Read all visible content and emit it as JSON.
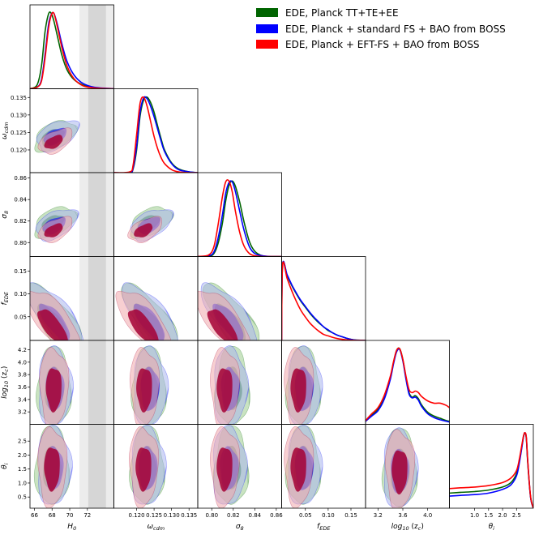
{
  "chart_data": {
    "type": "corner",
    "title": "",
    "legend": {
      "placement": "top-right",
      "entries": [
        {
          "label": "EDE, Planck TT+TE+EE",
          "color": "#006400"
        },
        {
          "label": "EDE, Planck + standard FS + BAO from BOSS",
          "color": "#0000ff"
        },
        {
          "label": "EDE, Planck + EFT-FS + BAO from BOSS",
          "color": "#ff0000"
        }
      ]
    },
    "colors": {
      "green": "#006400",
      "blue": "#0000ff",
      "red": "#ff0000",
      "green_fill": "#9ccc8e",
      "blue_fill": "#a9b6ec",
      "red_fill": "#f0a7ac",
      "red_dark": "#a50034",
      "shade_light": "#ececec",
      "shade_dark": "#d6d6d6"
    },
    "h0_band": {
      "sigma1": [
        72.1,
        74.1
      ],
      "sigma2": [
        71.1,
        75.1
      ]
    },
    "parameters": [
      {
        "key": "H0",
        "label": "H",
        "sub": "0",
        "range": [
          65.5,
          75.0
        ],
        "ticks": [
          66,
          68,
          70,
          72
        ],
        "tick_labels": [
          "66",
          "68",
          "70",
          "72"
        ]
      },
      {
        "key": "omega_cdm",
        "label": "ω",
        "sub": "cdm",
        "range": [
          0.1135,
          0.1375
        ],
        "ticks": [
          0.12,
          0.125,
          0.13,
          0.135
        ],
        "tick_labels": [
          "0.120",
          "0.125",
          "0.130",
          "0.135"
        ]
      },
      {
        "key": "sigma8",
        "label": "σ",
        "sub": "8",
        "range": [
          0.787,
          0.865
        ],
        "ticks": [
          0.8,
          0.82,
          0.84,
          0.86
        ],
        "tick_labels": [
          "0.80",
          "0.82",
          "0.84",
          "0.86"
        ]
      },
      {
        "key": "fEDE",
        "label": "f",
        "sub": "EDE",
        "range": [
          -0.002,
          0.182
        ],
        "ticks": [
          0.05,
          0.1,
          0.15
        ],
        "tick_labels": [
          "0.05",
          "0.10",
          "0.15"
        ]
      },
      {
        "key": "log10zc",
        "label": "log",
        "sub": "10",
        "suffix": " (z",
        "sub2": "c",
        "suffix2": ")",
        "range": [
          3.0,
          4.35
        ],
        "ticks": [
          3.2,
          3.4,
          3.6,
          3.8,
          4.0,
          4.2
        ],
        "tick_labels": [
          "3.2",
          "3.4",
          "3.6",
          "3.8",
          "4.0",
          "4.2"
        ]
      },
      {
        "key": "theta_i",
        "label": "θ",
        "sub": "i",
        "range": [
          0.1,
          3.1
        ],
        "ticks": [
          0.5,
          1.0,
          1.5,
          2.0,
          2.5
        ],
        "tick_labels": [
          "0.5",
          "1.0",
          "1.5",
          "2.0",
          "2.5"
        ]
      }
    ],
    "x_tick_subsets": [
      {
        "ticks": [
          66,
          68,
          70,
          72
        ],
        "tick_labels": [
          "66",
          "68",
          "70",
          "72"
        ]
      },
      {
        "ticks": [
          0.12,
          0.125,
          0.13,
          0.135
        ],
        "tick_labels": [
          "0.120",
          "0.125",
          "0.130",
          "0.135"
        ]
      },
      {
        "ticks": [
          0.8,
          0.82,
          0.84,
          0.86
        ],
        "tick_labels": [
          "0.80",
          "0.82",
          "0.84",
          "0.86"
        ]
      },
      {
        "ticks": [
          0.05,
          0.1,
          0.15
        ],
        "tick_labels": [
          "0.05",
          "0.10",
          "0.15"
        ]
      },
      {
        "ticks": [
          3.2,
          3.6,
          4.0
        ],
        "tick_labels": [
          "3.2",
          "3.6",
          "4.0"
        ]
      },
      {
        "ticks": [
          1.0,
          1.5,
          2.0,
          2.5
        ],
        "tick_labels": [
          "1.0",
          "1.5",
          "2.0",
          "2.5"
        ]
      }
    ],
    "y_tick_subsets": [
      null,
      {
        "ticks": [
          0.12,
          0.125,
          0.13,
          0.135
        ],
        "tick_labels": [
          "0.120",
          "0.125",
          "0.130",
          "0.135"
        ]
      },
      {
        "ticks": [
          0.8,
          0.82,
          0.84,
          0.86
        ],
        "tick_labels": [
          "0.80",
          "0.82",
          "0.84",
          "0.86"
        ]
      },
      {
        "ticks": [
          0.05,
          0.1,
          0.15
        ],
        "tick_labels": [
          "0.05",
          "0.10",
          "0.15"
        ]
      },
      {
        "ticks": [
          3.2,
          3.4,
          3.6,
          3.8,
          4.0,
          4.2
        ],
        "tick_labels": [
          "3.2",
          "3.4",
          "3.6",
          "3.8",
          "4.0",
          "4.2"
        ]
      },
      {
        "ticks": [
          0.5,
          1.0,
          1.5,
          2.0,
          2.5
        ],
        "tick_labels": [
          "0.5",
          "1.0",
          "1.5",
          "2.0",
          "2.5"
        ]
      }
    ],
    "posteriors_1d": {
      "H0": {
        "x": [
          65.5,
          66.3,
          66.8,
          67.2,
          67.6,
          67.9,
          68.2,
          68.6,
          69.1,
          69.7,
          70.5,
          71.5,
          72.8,
          75.0
        ],
        "series": [
          {
            "name": "green",
            "y": [
              0.0,
              0.05,
              0.3,
              0.75,
              0.99,
              1.0,
              0.9,
              0.7,
              0.45,
              0.25,
              0.12,
              0.05,
              0.01,
              0.0
            ]
          },
          {
            "name": "blue",
            "y": [
              0.0,
              0.02,
              0.12,
              0.45,
              0.85,
              0.98,
              1.0,
              0.85,
              0.6,
              0.36,
              0.18,
              0.07,
              0.02,
              0.0
            ]
          },
          {
            "name": "red",
            "y": [
              0.0,
              0.02,
              0.1,
              0.4,
              0.8,
              0.97,
              1.0,
              0.82,
              0.55,
              0.3,
              0.13,
              0.04,
              0.01,
              0.0
            ]
          }
        ]
      },
      "omega_cdm": {
        "x": [
          0.1135,
          0.118,
          0.119,
          0.12,
          0.121,
          0.122,
          0.123,
          0.124,
          0.125,
          0.126,
          0.127,
          0.128,
          0.13,
          0.132,
          0.135,
          0.1375
        ],
        "series": [
          {
            "name": "green",
            "y": [
              0.0,
              0.0,
              0.05,
              0.3,
              0.75,
              0.96,
              1.0,
              0.93,
              0.8,
              0.62,
              0.45,
              0.3,
              0.13,
              0.05,
              0.01,
              0.0
            ]
          },
          {
            "name": "blue",
            "y": [
              0.0,
              0.0,
              0.06,
              0.35,
              0.8,
              0.99,
              0.98,
              0.88,
              0.74,
              0.58,
              0.42,
              0.28,
              0.12,
              0.04,
              0.01,
              0.0
            ]
          },
          {
            "name": "red",
            "y": [
              0.0,
              0.01,
              0.1,
              0.5,
              0.92,
              1.0,
              0.88,
              0.68,
              0.48,
              0.32,
              0.2,
              0.12,
              0.04,
              0.01,
              0.0,
              0.0
            ]
          }
        ]
      },
      "sigma8": {
        "x": [
          0.787,
          0.797,
          0.802,
          0.806,
          0.81,
          0.813,
          0.816,
          0.819,
          0.822,
          0.826,
          0.83,
          0.835,
          0.84,
          0.847,
          0.855,
          0.865
        ],
        "series": [
          {
            "name": "green",
            "y": [
              0.0,
              0.0,
              0.04,
              0.18,
              0.45,
              0.74,
              0.94,
              1.0,
              0.93,
              0.72,
              0.46,
              0.2,
              0.07,
              0.01,
              0.0,
              0.0
            ]
          },
          {
            "name": "blue",
            "y": [
              0.0,
              0.01,
              0.06,
              0.25,
              0.56,
              0.84,
              0.98,
              0.99,
              0.86,
              0.6,
              0.35,
              0.13,
              0.04,
              0.01,
              0.0,
              0.0
            ]
          },
          {
            "name": "red",
            "y": [
              0.0,
              0.02,
              0.13,
              0.43,
              0.8,
              0.99,
              1.0,
              0.86,
              0.6,
              0.32,
              0.14,
              0.04,
              0.01,
              0.0,
              0.0,
              0.0
            ]
          }
        ]
      },
      "fEDE": {
        "x": [
          -0.002,
          0.0,
          0.01,
          0.02,
          0.03,
          0.04,
          0.05,
          0.06,
          0.07,
          0.08,
          0.09,
          0.1,
          0.11,
          0.12,
          0.13,
          0.14,
          0.15,
          0.16,
          0.182
        ],
        "series": [
          {
            "name": "green",
            "y": [
              0.0,
              1.0,
              0.86,
              0.73,
              0.62,
              0.52,
              0.44,
              0.36,
              0.29,
              0.23,
              0.18,
              0.13,
              0.1,
              0.07,
              0.05,
              0.03,
              0.015,
              0.005,
              0.0
            ]
          },
          {
            "name": "blue",
            "y": [
              0.0,
              1.0,
              0.87,
              0.74,
              0.63,
              0.53,
              0.45,
              0.37,
              0.3,
              0.24,
              0.18,
              0.14,
              0.1,
              0.07,
              0.05,
              0.03,
              0.015,
              0.005,
              0.0
            ]
          },
          {
            "name": "red",
            "y": [
              0.0,
              1.0,
              0.82,
              0.66,
              0.52,
              0.4,
              0.31,
              0.23,
              0.17,
              0.12,
              0.08,
              0.06,
              0.04,
              0.025,
              0.015,
              0.008,
              0.004,
              0.001,
              0.0
            ]
          }
        ]
      },
      "log10zc": {
        "x": [
          3.0,
          3.1,
          3.2,
          3.3,
          3.4,
          3.45,
          3.5,
          3.55,
          3.6,
          3.65,
          3.7,
          3.75,
          3.8,
          3.85,
          3.9,
          4.0,
          4.1,
          4.2,
          4.3,
          4.35
        ],
        "series": [
          {
            "name": "green",
            "y": [
              0.04,
              0.12,
              0.2,
              0.35,
              0.62,
              0.82,
              0.98,
              1.0,
              0.86,
              0.62,
              0.42,
              0.36,
              0.38,
              0.34,
              0.26,
              0.16,
              0.11,
              0.08,
              0.05,
              0.04
            ]
          },
          {
            "name": "blue",
            "y": [
              0.04,
              0.11,
              0.18,
              0.33,
              0.6,
              0.8,
              0.96,
              0.99,
              0.84,
              0.6,
              0.4,
              0.35,
              0.36,
              0.32,
              0.24,
              0.14,
              0.09,
              0.06,
              0.04,
              0.03
            ]
          },
          {
            "name": "red",
            "y": [
              0.05,
              0.14,
              0.22,
              0.38,
              0.64,
              0.83,
              0.98,
              1.0,
              0.86,
              0.64,
              0.46,
              0.42,
              0.44,
              0.42,
              0.37,
              0.31,
              0.28,
              0.28,
              0.25,
              0.22
            ]
          }
        ]
      },
      "theta_i": {
        "x": [
          0.1,
          0.5,
          1.0,
          1.5,
          2.0,
          2.3,
          2.5,
          2.6,
          2.7,
          2.75,
          2.8,
          2.85,
          2.9,
          3.0,
          3.1
        ],
        "series": [
          {
            "name": "green",
            "y": [
              0.2,
              0.21,
              0.22,
              0.24,
              0.28,
              0.34,
              0.46,
              0.62,
              0.84,
              0.95,
              1.0,
              0.92,
              0.6,
              0.15,
              0.0
            ]
          },
          {
            "name": "blue",
            "y": [
              0.16,
              0.17,
              0.18,
              0.2,
              0.25,
              0.31,
              0.43,
              0.6,
              0.83,
              0.95,
              1.0,
              0.93,
              0.62,
              0.15,
              0.0
            ]
          },
          {
            "name": "red",
            "y": [
              0.26,
              0.27,
              0.28,
              0.3,
              0.34,
              0.4,
              0.5,
              0.65,
              0.86,
              0.96,
              1.0,
              0.94,
              0.63,
              0.16,
              0.0
            ]
          }
        ]
      }
    },
    "posteriors_2d": {
      "H0|omega_cdm": {
        "g": [
          68.3,
          0.124
        ],
        "b": [
          68.6,
          0.1242
        ],
        "r": [
          68.4,
          0.1225
        ]
      },
      "H0|sigma8": {
        "g": [
          68.3,
          0.819
        ],
        "b": [
          68.5,
          0.817
        ],
        "r": [
          68.4,
          0.812
        ]
      },
      "H0|fEDE": {
        "g": [
          68.3,
          0.045
        ],
        "b": [
          68.5,
          0.047
        ],
        "r": [
          68.3,
          0.035
        ]
      },
      "H0|log10zc": {
        "g": [
          68.2,
          3.6
        ],
        "b": [
          68.3,
          3.6
        ],
        "r": [
          68.2,
          3.6
        ]
      },
      "H0|theta_i": {
        "g": [
          68.0,
          1.6
        ],
        "b": [
          68.2,
          1.6
        ],
        "r": [
          68.0,
          1.6
        ]
      },
      "omega_cdm|sigma8": {
        "g": [
          0.124,
          0.819
        ],
        "b": [
          0.1242,
          0.817
        ],
        "r": [
          0.1225,
          0.812
        ]
      },
      "omega_cdm|fEDE": {
        "g": [
          0.124,
          0.045
        ],
        "b": [
          0.1242,
          0.047
        ],
        "r": [
          0.1225,
          0.035
        ]
      },
      "omega_cdm|log10zc": {
        "g": [
          0.1235,
          3.6
        ],
        "b": [
          0.1238,
          3.6
        ],
        "r": [
          0.1222,
          3.6
        ]
      },
      "omega_cdm|theta_i": {
        "g": [
          0.123,
          1.6
        ],
        "b": [
          0.1232,
          1.6
        ],
        "r": [
          0.122,
          1.6
        ]
      },
      "sigma8|fEDE": {
        "g": [
          0.819,
          0.045
        ],
        "b": [
          0.817,
          0.047
        ],
        "r": [
          0.812,
          0.035
        ]
      },
      "sigma8|log10zc": {
        "g": [
          0.819,
          3.6
        ],
        "b": [
          0.817,
          3.6
        ],
        "r": [
          0.812,
          3.6
        ]
      },
      "sigma8|theta_i": {
        "g": [
          0.818,
          1.6
        ],
        "b": [
          0.816,
          1.6
        ],
        "r": [
          0.812,
          1.6
        ]
      },
      "fEDE|log10zc": {
        "g": [
          0.045,
          3.6
        ],
        "b": [
          0.047,
          3.6
        ],
        "r": [
          0.035,
          3.6
        ]
      },
      "fEDE|theta_i": {
        "g": [
          0.045,
          1.6
        ],
        "b": [
          0.047,
          1.6
        ],
        "r": [
          0.035,
          1.6
        ]
      },
      "log10zc|theta_i": {
        "g": [
          3.55,
          1.5
        ],
        "b": [
          3.55,
          1.5
        ],
        "r": [
          3.55,
          1.5
        ]
      }
    }
  }
}
